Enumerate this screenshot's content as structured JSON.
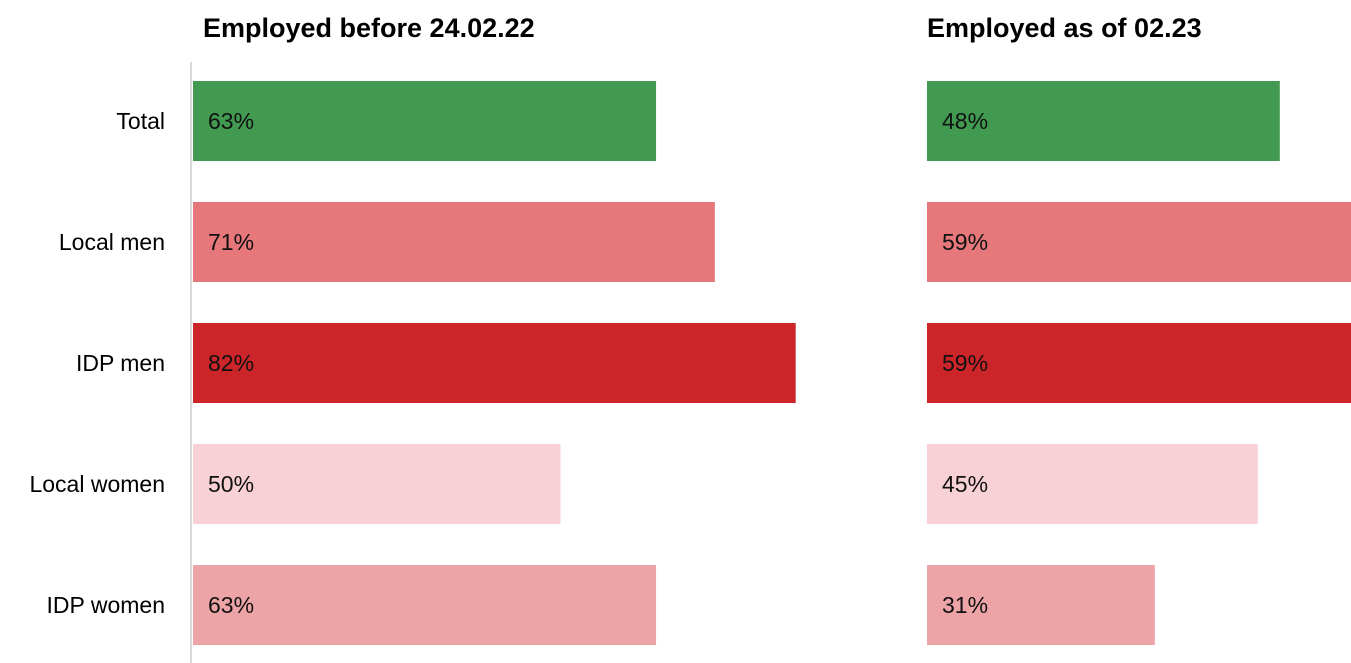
{
  "chart_data": {
    "type": "bar",
    "orientation": "horizontal",
    "categories": [
      "Total",
      "Local men",
      "IDP men",
      "Local women",
      "IDP women"
    ],
    "category_colors": [
      "#419a50",
      "#e6777b",
      "#cb252a",
      "#f8d1d6",
      "#eda4a7"
    ],
    "label_suffix": "%",
    "panels": [
      {
        "title": "Employed before 24.02.22",
        "values": [
          63,
          71,
          82,
          50,
          63
        ],
        "xlim": [
          0,
          100
        ]
      },
      {
        "title": "Employed as of 02.23",
        "values": [
          48,
          59,
          59,
          45,
          31
        ],
        "xlim": [
          0,
          100
        ]
      }
    ],
    "grid": false,
    "legend": "none"
  }
}
